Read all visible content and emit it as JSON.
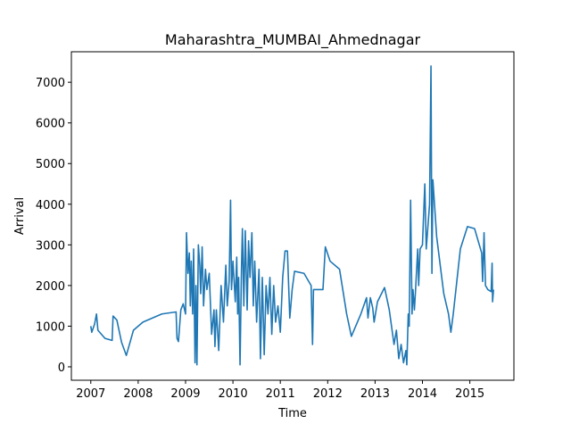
{
  "chart_data": {
    "type": "line",
    "title": "Maharashtra_MUMBAI_Ahmednagar",
    "x_label": "Time",
    "y_label": "Arrival",
    "x": [
      2007.0,
      2007.02,
      2007.08,
      2007.12,
      2007.15,
      2007.3,
      2007.45,
      2007.47,
      2007.55,
      2007.65,
      2007.75,
      2007.9,
      2008.1,
      2008.5,
      2008.8,
      2008.82,
      2008.85,
      2008.9,
      2008.95,
      2009.0,
      2009.02,
      2009.05,
      2009.08,
      2009.1,
      2009.12,
      2009.15,
      2009.17,
      2009.2,
      2009.22,
      2009.24,
      2009.27,
      2009.3,
      2009.32,
      2009.35,
      2009.38,
      2009.42,
      2009.45,
      2009.5,
      2009.55,
      2009.6,
      2009.62,
      2009.65,
      2009.7,
      2009.75,
      2009.8,
      2009.85,
      2009.88,
      2009.92,
      2009.95,
      2009.97,
      2010.0,
      2010.05,
      2010.08,
      2010.1,
      2010.12,
      2010.15,
      2010.18,
      2010.2,
      2010.23,
      2010.26,
      2010.3,
      2010.33,
      2010.36,
      2010.4,
      2010.43,
      2010.46,
      2010.5,
      2010.55,
      2010.58,
      2010.62,
      2010.66,
      2010.7,
      2010.74,
      2010.78,
      2010.82,
      2010.86,
      2010.9,
      2010.95,
      2011.0,
      2011.05,
      2011.1,
      2011.15,
      2011.2,
      2011.25,
      2011.3,
      2011.5,
      2011.65,
      2011.68,
      2011.7,
      2011.9,
      2011.95,
      2012.05,
      2012.25,
      2012.4,
      2012.5,
      2012.7,
      2012.82,
      2012.85,
      2012.9,
      2012.95,
      2012.98,
      2013.05,
      2013.2,
      2013.3,
      2013.4,
      2013.45,
      2013.5,
      2013.55,
      2013.6,
      2013.65,
      2013.67,
      2013.7,
      2013.72,
      2013.75,
      2013.78,
      2013.8,
      2013.83,
      2013.85,
      2013.9,
      2013.92,
      2013.95,
      2014.0,
      2014.05,
      2014.08,
      2014.15,
      2014.18,
      2014.2,
      2014.22,
      2014.3,
      2014.45,
      2014.55,
      2014.6,
      2014.65,
      2014.8,
      2014.95,
      2015.1,
      2015.25,
      2015.27,
      2015.3,
      2015.33,
      2015.38,
      2015.45,
      2015.47,
      2015.48,
      2015.5
    ],
    "series": [
      {
        "name": "Arrival",
        "color": "#1f77b4",
        "values": [
          1000,
          850,
          1050,
          1300,
          900,
          700,
          650,
          1250,
          1150,
          600,
          280,
          900,
          1100,
          1300,
          1350,
          700,
          620,
          1400,
          1550,
          1300,
          3300,
          2300,
          2800,
          1500,
          2600,
          1300,
          2900,
          100,
          2000,
          50,
          3000,
          2500,
          1800,
          2950,
          1500,
          2400,
          1900,
          2300,
          800,
          1400,
          500,
          1400,
          400,
          2000,
          1100,
          2500,
          1500,
          2100,
          4100,
          1900,
          2600,
          1600,
          2700,
          1300,
          2200,
          50,
          2400,
          3400,
          1500,
          3350,
          1400,
          3100,
          2200,
          3300,
          1500,
          2600,
          1100,
          2400,
          200,
          2200,
          300,
          2000,
          1300,
          2200,
          800,
          2000,
          1100,
          1500,
          850,
          2200,
          2850,
          2850,
          1200,
          1900,
          2350,
          2300,
          2000,
          550,
          1900,
          1900,
          2950,
          2600,
          2400,
          1300,
          750,
          1300,
          1700,
          1200,
          1700,
          1450,
          1100,
          1600,
          1950,
          1400,
          550,
          900,
          200,
          550,
          100,
          400,
          50,
          1300,
          1000,
          4100,
          1300,
          1900,
          1400,
          1800,
          2900,
          2000,
          2900,
          3000,
          4500,
          2900,
          4000,
          7400,
          2300,
          4600,
          3200,
          1800,
          1300,
          850,
          1300,
          2900,
          3450,
          3400,
          2800,
          2100,
          3300,
          2000,
          1900,
          1850,
          2550,
          1600,
          1900
        ]
      }
    ],
    "xlim": [
      2006.59,
      2015.93
    ],
    "ylim": [
      -330,
      7750
    ],
    "xticks": [
      2007,
      2008,
      2009,
      2010,
      2011,
      2012,
      2013,
      2014,
      2015
    ],
    "yticks": [
      0,
      1000,
      2000,
      3000,
      4000,
      5000,
      6000,
      7000
    ],
    "grid": false
  }
}
